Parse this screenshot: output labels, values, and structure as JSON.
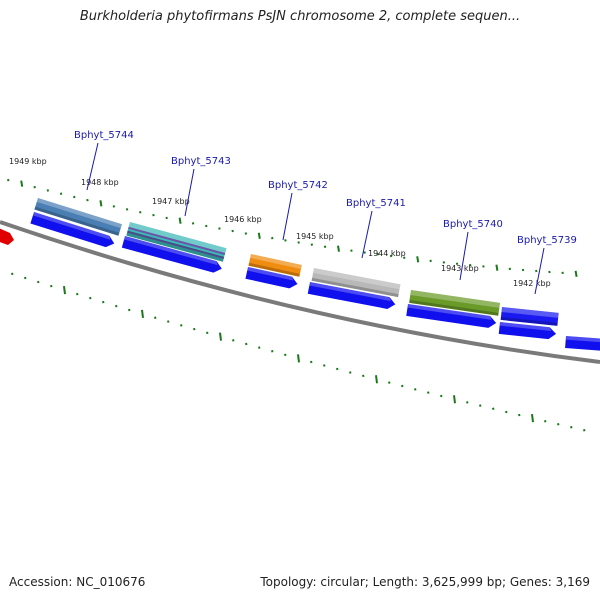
{
  "title": "Burkholderia phytofirmans PsJN chromosome 2, complete sequen...",
  "footer": {
    "accession": "Accession: NC_010676",
    "summary": "Topology: circular; Length: 3,625,999 bp; Genes: 3,169"
  },
  "scale_labels": [
    "1949 kbp",
    "1948 kbp",
    "1947 kbp",
    "1946 kbp",
    "1945 kbp",
    "1944 kbp",
    "1943 kbp",
    "1942 kbp"
  ],
  "gene_labels": [
    "Bphyt_5744",
    "Bphyt_5743",
    "Bphyt_5742",
    "Bphyt_5741",
    "Bphyt_5740",
    "Bphyt_5739"
  ],
  "colors": {
    "backbone": "#7a7a7a",
    "tick": "#1a7a1a",
    "cds": "#1010ee",
    "gene_label": "#1a1aaa",
    "red_feature": "#e00000",
    "gene_5744": "#4a7fb5",
    "gene_5743": "#3cb8b8",
    "gene_5742": "#f08c10",
    "gene_5741": "#b8b8b8",
    "gene_5740": "#6a9a28",
    "gene_5739": "#1a1af0"
  }
}
